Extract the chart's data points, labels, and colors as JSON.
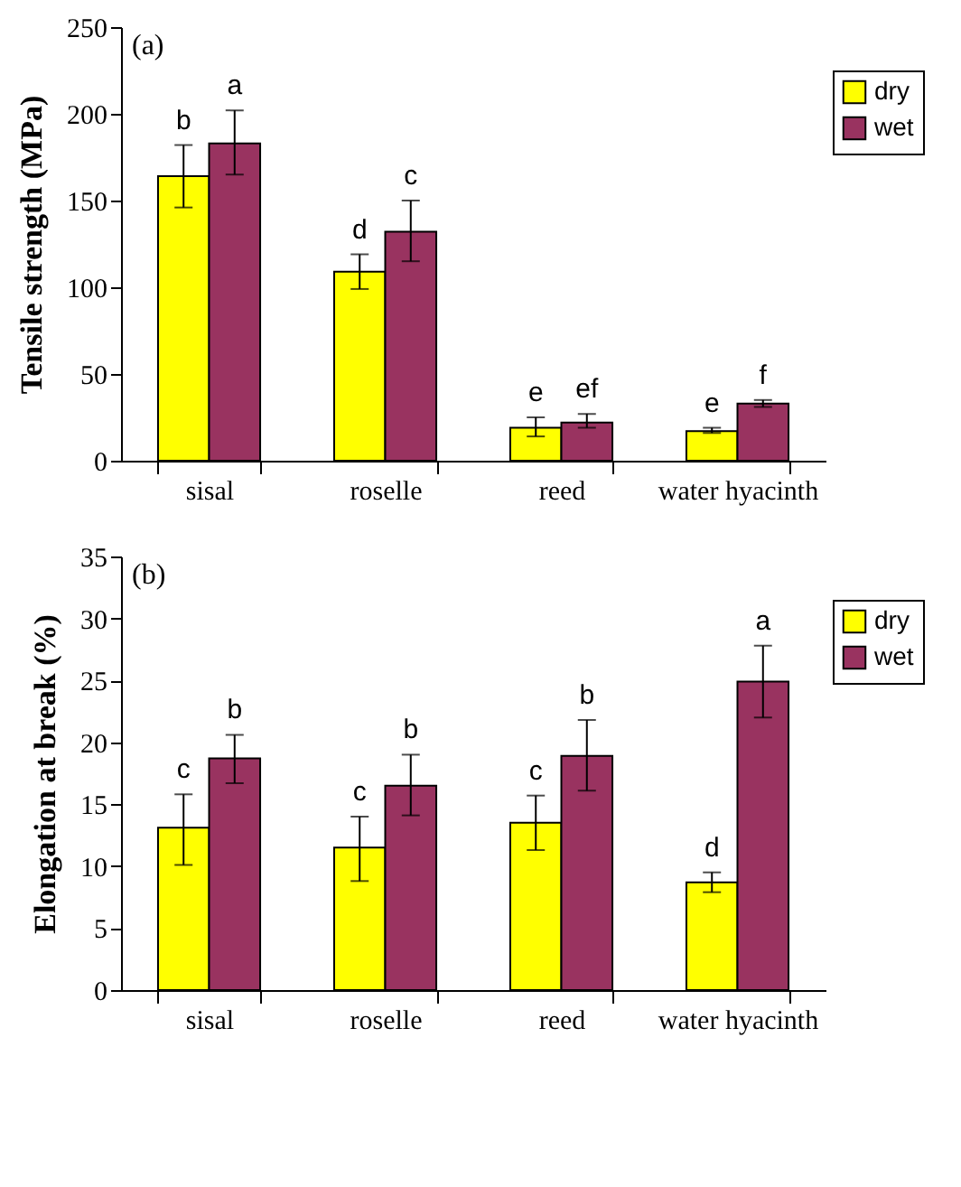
{
  "chart_data": [
    {
      "type": "bar",
      "title": "(a)",
      "ylabel": "Tensile strength (MPa)",
      "categories": [
        "sisal",
        "roselle",
        "reed",
        "water hyacinth"
      ],
      "ylim": [
        0,
        250
      ],
      "yticks": [
        0,
        50,
        100,
        150,
        200,
        250
      ],
      "grid": false,
      "legend": "top right",
      "series": [
        {
          "name": "dry",
          "color": "#ffff00",
          "values": [
            164,
            109,
            19,
            17
          ],
          "errors": [
            [
              146,
              182
            ],
            [
              99,
              119
            ],
            [
              14,
              25
            ],
            [
              16,
              19
            ]
          ]
        },
        {
          "name": "wet",
          "color": "#993360",
          "values": [
            183,
            132,
            22,
            33
          ],
          "errors": [
            [
              165,
              202
            ],
            [
              115,
              150
            ],
            [
              19,
              27
            ],
            [
              31,
              35
            ]
          ]
        }
      ],
      "annotations": [
        "b",
        "a",
        "d",
        "c",
        "e",
        "ef",
        "e",
        "f"
      ]
    },
    {
      "type": "bar",
      "title": "(b)",
      "ylabel": "Elongation at break (%)",
      "categories": [
        "sisal",
        "roselle",
        "reed",
        "water hyacinth"
      ],
      "ylim": [
        0,
        35
      ],
      "yticks": [
        0,
        5,
        10,
        15,
        20,
        25,
        30,
        35
      ],
      "grid": false,
      "legend": "top right",
      "series": [
        {
          "name": "dry",
          "color": "#ffff00",
          "values": [
            13.1,
            11.5,
            13.5,
            8.7
          ],
          "errors": [
            [
              10.1,
              15.8
            ],
            [
              8.8,
              14.0
            ],
            [
              11.3,
              15.7
            ],
            [
              7.9,
              9.5
            ]
          ]
        },
        {
          "name": "wet",
          "color": "#993360",
          "values": [
            18.7,
            16.5,
            18.9,
            24.9
          ],
          "errors": [
            [
              16.7,
              20.6
            ],
            [
              14.1,
              19.0
            ],
            [
              16.1,
              21.8
            ],
            [
              22.0,
              27.8
            ]
          ]
        }
      ],
      "annotations": [
        "c",
        "b",
        "c",
        "b",
        "c",
        "b",
        "d",
        "a"
      ]
    }
  ]
}
